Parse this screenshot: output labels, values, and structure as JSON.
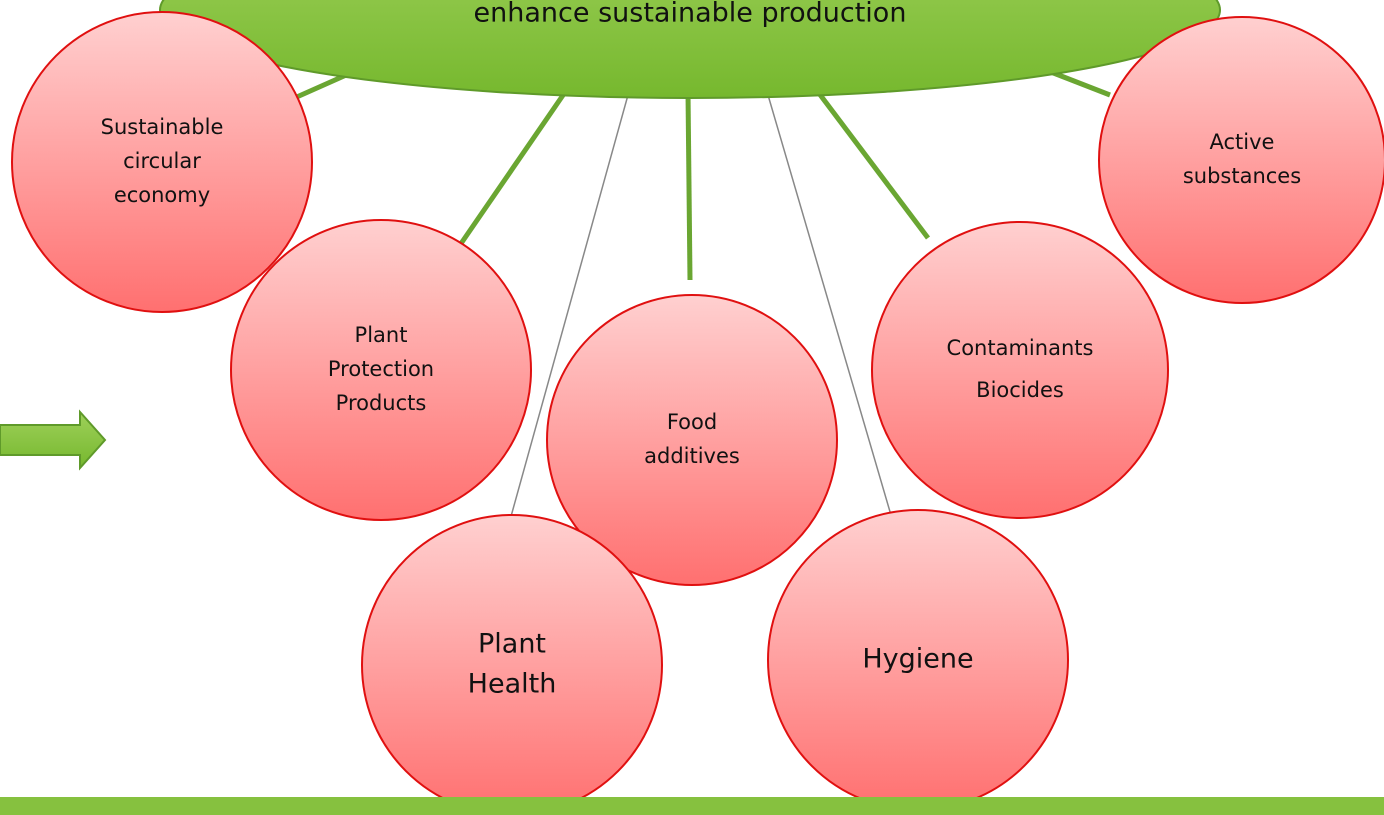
{
  "hub": {
    "label": "enhance sustainable production"
  },
  "nodes": [
    {
      "label": [
        "Sustainable",
        "circular",
        "economy"
      ]
    },
    {
      "label": [
        "Plant",
        "Protection",
        "Products"
      ]
    },
    {
      "label": [
        "Food",
        "additives"
      ]
    },
    {
      "label": [
        "Contaminants",
        "Biocides"
      ]
    },
    {
      "label": [
        "Active",
        "substances"
      ]
    },
    {
      "label": [
        "Plant",
        "Health"
      ]
    },
    {
      "label": [
        "Hygiene"
      ]
    }
  ]
}
